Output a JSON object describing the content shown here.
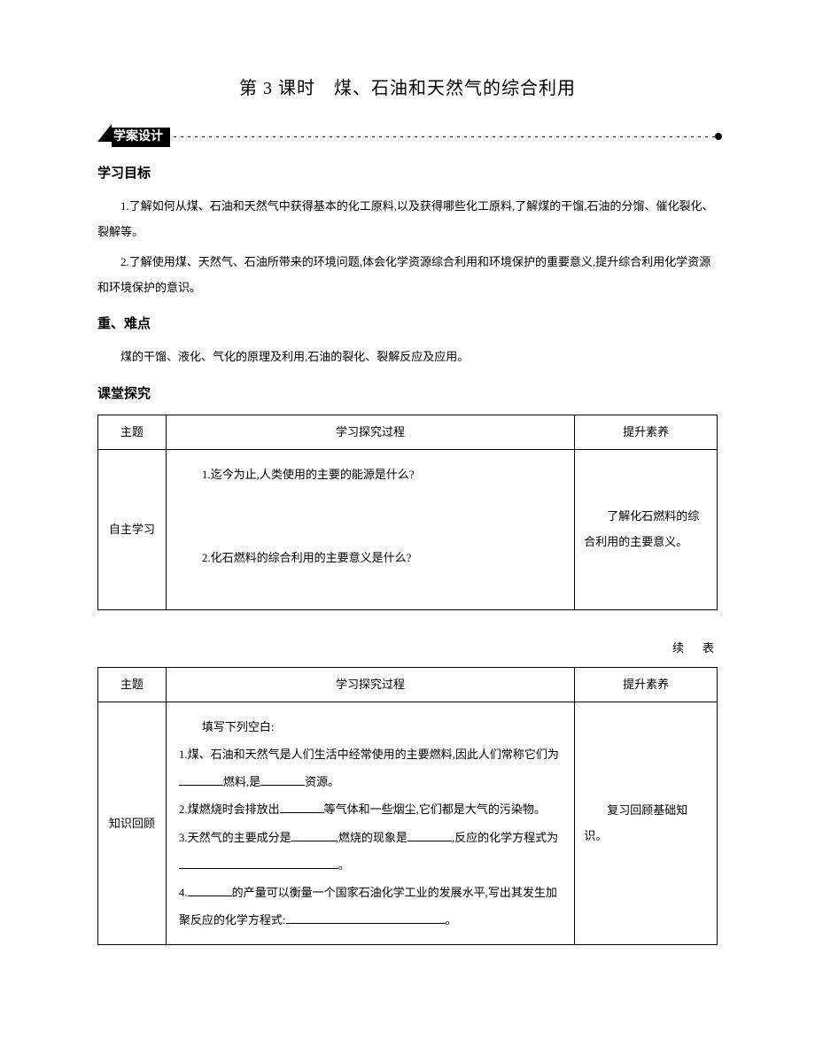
{
  "title": "第 3 课时　煤、石油和天然气的综合利用",
  "banner": "学案设计",
  "sections": {
    "goals": {
      "heading": "学习目标",
      "items": [
        "1.了解如何从煤、石油和天然气中获得基本的化工原料,以及获得哪些化工原料,了解煤的干馏,石油的分馏、催化裂化、裂解等。",
        "2.了解使用煤、天然气、石油所带来的环境问题,体会化学资源综合利用和环境保护的重要意义,提升综合利用化学资源和环境保护的意识。"
      ]
    },
    "keypoints": {
      "heading": "重、难点",
      "text": "煤的干馏、液化、气化的原理及利用,石油的裂化、裂解反应及应用。"
    },
    "explore": {
      "heading": "课堂探究"
    }
  },
  "table1": {
    "headers": [
      "主题",
      "学习探究过程",
      "提升素养"
    ],
    "rows": [
      {
        "topic": "自主学习",
        "process": [
          "1.迄今为止,人类使用的主要的能源是什么?",
          "2.化石燃料的综合利用的主要意义是什么?"
        ],
        "outcome": "了解化石燃料的综合利用的主要意义。"
      }
    ]
  },
  "continue": "续　表",
  "table2": {
    "headers": [
      "主题",
      "学习探究过程",
      "提升素养"
    ],
    "rows": [
      {
        "topic": "知识回顾",
        "process_intro": "填写下列空白:",
        "process": [
          {
            "prefix": "1.煤、石油和天然气是人们生活中经常使用的主要燃料,因此人们常称它们为",
            "blank1": "short",
            "mid1": "燃料,是",
            "blank2": "short",
            "suffix": "资源。"
          },
          {
            "prefix": "2.煤燃烧时会排放出",
            "blank1": "short",
            "suffix": "等气体和一些烟尘,它们都是大气的污染物。"
          },
          {
            "prefix": "3.天然气的主要成分是",
            "blank1": "short",
            "mid1": ",燃烧的现象是",
            "blank2": "short",
            "mid2": ",反应的化学方程式为",
            "blank3": "long",
            "suffix": "。"
          },
          {
            "prefix": "4.",
            "blank1": "short",
            "mid1": "的产量可以衡量一个国家石油化学工业的发展水平,写出其发生加聚反应的化学方程式:",
            "blank2": "long",
            "suffix": "。"
          }
        ],
        "outcome": "复习回顾基础知识。"
      }
    ]
  }
}
